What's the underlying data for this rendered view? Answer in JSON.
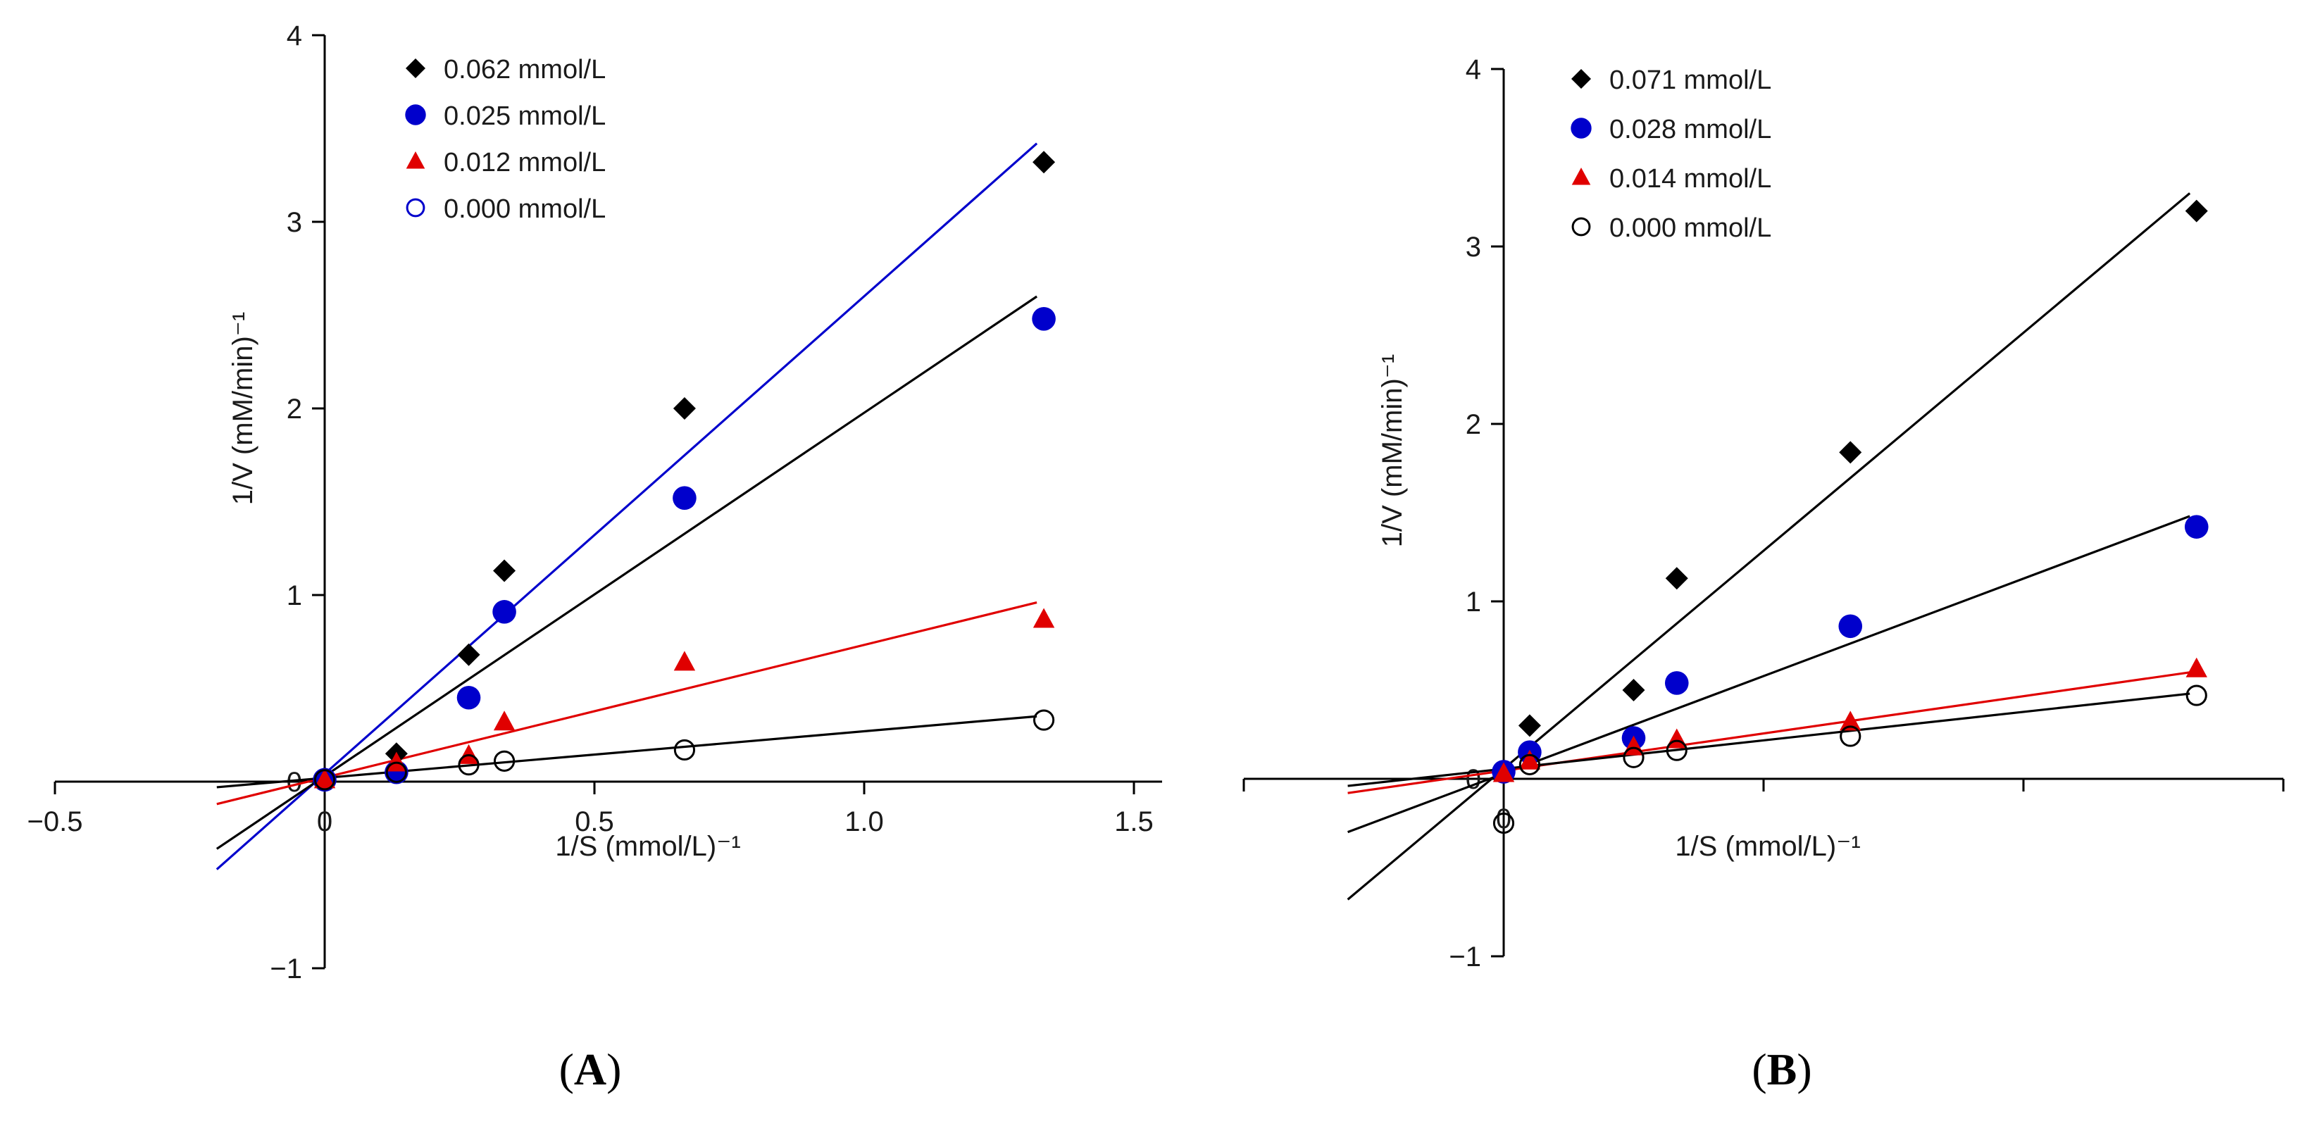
{
  "chart_data": [
    {
      "type": "scatter",
      "panel_label": "A",
      "xlabel": "1/S (mmol/L)⁻¹",
      "ylabel": "1/V (mM/min)⁻¹",
      "xlim": [
        -0.5,
        1.5
      ],
      "ylim": [
        -1,
        4
      ],
      "xticks": [
        -0.5,
        0,
        0.5,
        1.0,
        1.5
      ],
      "xtick_labels": [
        "−0.5",
        "0",
        "0.5",
        "1.0",
        "1.5"
      ],
      "yticks": [
        -1,
        0,
        1,
        2,
        3,
        4
      ],
      "ytick_labels": [
        "−1",
        "0",
        "1",
        "2",
        "3",
        "4"
      ],
      "legend_position": "top-left",
      "series": [
        {
          "name": "0.062 mmol/L",
          "marker": "diamond",
          "color": "#000000",
          "line_color": "#0000cc",
          "x": [
            0,
            0.133,
            0.267,
            0.333,
            0.667,
            1.333
          ],
          "y": [
            0.02,
            0.15,
            0.68,
            1.13,
            2.0,
            3.32
          ],
          "fit": {
            "x": [
              -0.2,
              1.32
            ],
            "y": [
              -0.47,
              3.42
            ]
          }
        },
        {
          "name": "0.025 mmol/L",
          "marker": "filled-circle",
          "color": "#0000cc",
          "line_color": "#000000",
          "x": [
            0,
            0.133,
            0.267,
            0.333,
            0.667,
            1.333
          ],
          "y": [
            0.01,
            0.05,
            0.45,
            0.91,
            1.52,
            2.48
          ],
          "fit": {
            "x": [
              -0.2,
              1.32
            ],
            "y": [
              -0.36,
              2.6
            ]
          }
        },
        {
          "name": "0.012 mmol/L",
          "marker": "triangle",
          "color": "#e00000",
          "line_color": "#e00000",
          "x": [
            0,
            0.133,
            0.267,
            0.333,
            0.667,
            1.333
          ],
          "y": [
            0.01,
            0.1,
            0.14,
            0.32,
            0.64,
            0.87
          ],
          "fit": {
            "x": [
              -0.2,
              1.32
            ],
            "y": [
              -0.12,
              0.96
            ]
          }
        },
        {
          "name": "0.000 mmol/L",
          "marker": "open-circle",
          "color": "#000000",
          "legend_color": "#0000cc",
          "line_color": "#000000",
          "x": [
            0,
            0.133,
            0.267,
            0.333,
            0.667,
            1.333
          ],
          "y": [
            0.01,
            0.05,
            0.09,
            0.11,
            0.17,
            0.33
          ],
          "fit": {
            "x": [
              -0.2,
              1.32
            ],
            "y": [
              -0.03,
              0.35
            ]
          }
        }
      ]
    },
    {
      "type": "scatter",
      "panel_label": "B",
      "xlabel": "1/S (mmol/L)⁻¹",
      "ylabel": "1/V (mM/min)⁻¹",
      "xlim": [
        -0.5,
        1.5
      ],
      "ylim": [
        -1,
        4
      ],
      "xticks": [
        -0.5,
        0,
        0.5,
        1.0,
        1.5
      ],
      "xtick_labels": [
        "",
        "",
        "",
        "",
        ""
      ],
      "yticks": [
        -1,
        0,
        1,
        2,
        3,
        4
      ],
      "ytick_labels": [
        "−1",
        "0",
        "1",
        "2",
        "3",
        "4"
      ],
      "origin_marker": "0",
      "legend_position": "top-left",
      "series": [
        {
          "name": "0.071 mmol/L",
          "marker": "diamond",
          "color": "#000000",
          "line_color": "#000000",
          "x": [
            0,
            0.05,
            0.25,
            0.333,
            0.667,
            1.333
          ],
          "y": [
            0.04,
            0.3,
            0.5,
            1.13,
            1.84,
            3.2
          ],
          "fit": {
            "x": [
              -0.3,
              1.32
            ],
            "y": [
              -0.68,
              3.3
            ]
          }
        },
        {
          "name": "0.028 mmol/L",
          "marker": "filled-circle",
          "color": "#0000cc",
          "line_color": "#000000",
          "x": [
            0,
            0.05,
            0.25,
            0.333,
            0.667,
            1.333
          ],
          "y": [
            0.04,
            0.15,
            0.23,
            0.54,
            0.86,
            1.42
          ],
          "fit": {
            "x": [
              -0.3,
              1.32
            ],
            "y": [
              -0.3,
              1.48
            ]
          }
        },
        {
          "name": "0.014 mmol/L",
          "marker": "triangle",
          "color": "#e00000",
          "line_color": "#e00000",
          "x": [
            0,
            0.05,
            0.25,
            0.333,
            0.667,
            1.333
          ],
          "y": [
            0.03,
            0.1,
            0.18,
            0.22,
            0.32,
            0.62
          ],
          "fit": {
            "x": [
              -0.3,
              1.32
            ],
            "y": [
              -0.08,
              0.6
            ]
          }
        },
        {
          "name": "0.000 mmol/L",
          "marker": "open-circle",
          "color": "#000000",
          "line_color": "#000000",
          "x": [
            0,
            0.05,
            0.25,
            0.333,
            0.667,
            1.333
          ],
          "y": [
            -0.25,
            0.08,
            0.12,
            0.16,
            0.24,
            0.47
          ],
          "fit": {
            "x": [
              -0.3,
              1.32
            ],
            "y": [
              -0.04,
              0.48
            ]
          }
        }
      ]
    }
  ]
}
